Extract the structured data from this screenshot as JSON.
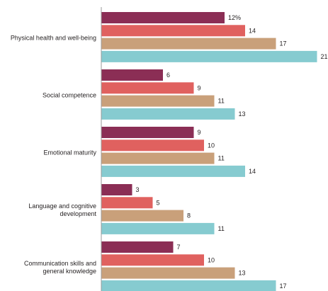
{
  "chart_data": {
    "type": "bar",
    "orientation": "horizontal",
    "categories": [
      [
        "Physical health and well-being"
      ],
      [
        "Social competence"
      ],
      [
        "Emotional maturity"
      ],
      [
        "Language and cognitive",
        "development"
      ],
      [
        "Communication skills and",
        "general knowledge"
      ]
    ],
    "series": [
      {
        "color": "#8b2e55",
        "values": [
          12,
          6,
          9,
          3,
          7
        ]
      },
      {
        "color": "#e0615f",
        "values": [
          14,
          9,
          10,
          5,
          10
        ]
      },
      {
        "color": "#c9a07a",
        "values": [
          17,
          11,
          11,
          8,
          13
        ]
      },
      {
        "color": "#86cbd0",
        "values": [
          21,
          13,
          14,
          11,
          17
        ]
      }
    ],
    "value_labels": [
      [
        "12%",
        "14",
        "17",
        "21"
      ],
      [
        "6",
        "9",
        "11",
        "13"
      ],
      [
        "9",
        "10",
        "11",
        "14"
      ],
      [
        "3",
        "5",
        "8",
        "11"
      ],
      [
        "7",
        "10",
        "13",
        "17"
      ]
    ],
    "xlim": [
      0,
      22
    ],
    "grid": false,
    "legend": "none"
  }
}
